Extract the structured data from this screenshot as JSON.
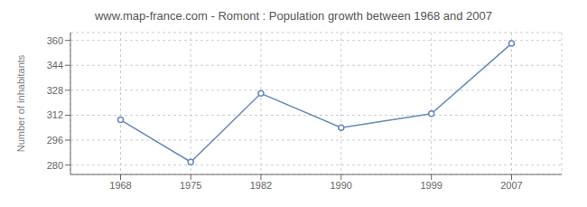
{
  "chart_data": {
    "type": "line",
    "title": "www.map-france.com - Romont : Population growth between 1968 and 2007",
    "ylabel": "Number of inhabitants",
    "x": [
      1968,
      1975,
      1982,
      1990,
      1999,
      2007
    ],
    "values": [
      309,
      282,
      326,
      304,
      313,
      358
    ],
    "color": "#6688bb",
    "marker": "circle",
    "xlim": [
      1963,
      2012
    ],
    "xticks": [
      1968,
      1975,
      1982,
      1990,
      1999,
      2007
    ],
    "ylim": [
      274,
      365
    ],
    "yticks": [
      280,
      296,
      312,
      328,
      344,
      360
    ],
    "grid": true
  }
}
